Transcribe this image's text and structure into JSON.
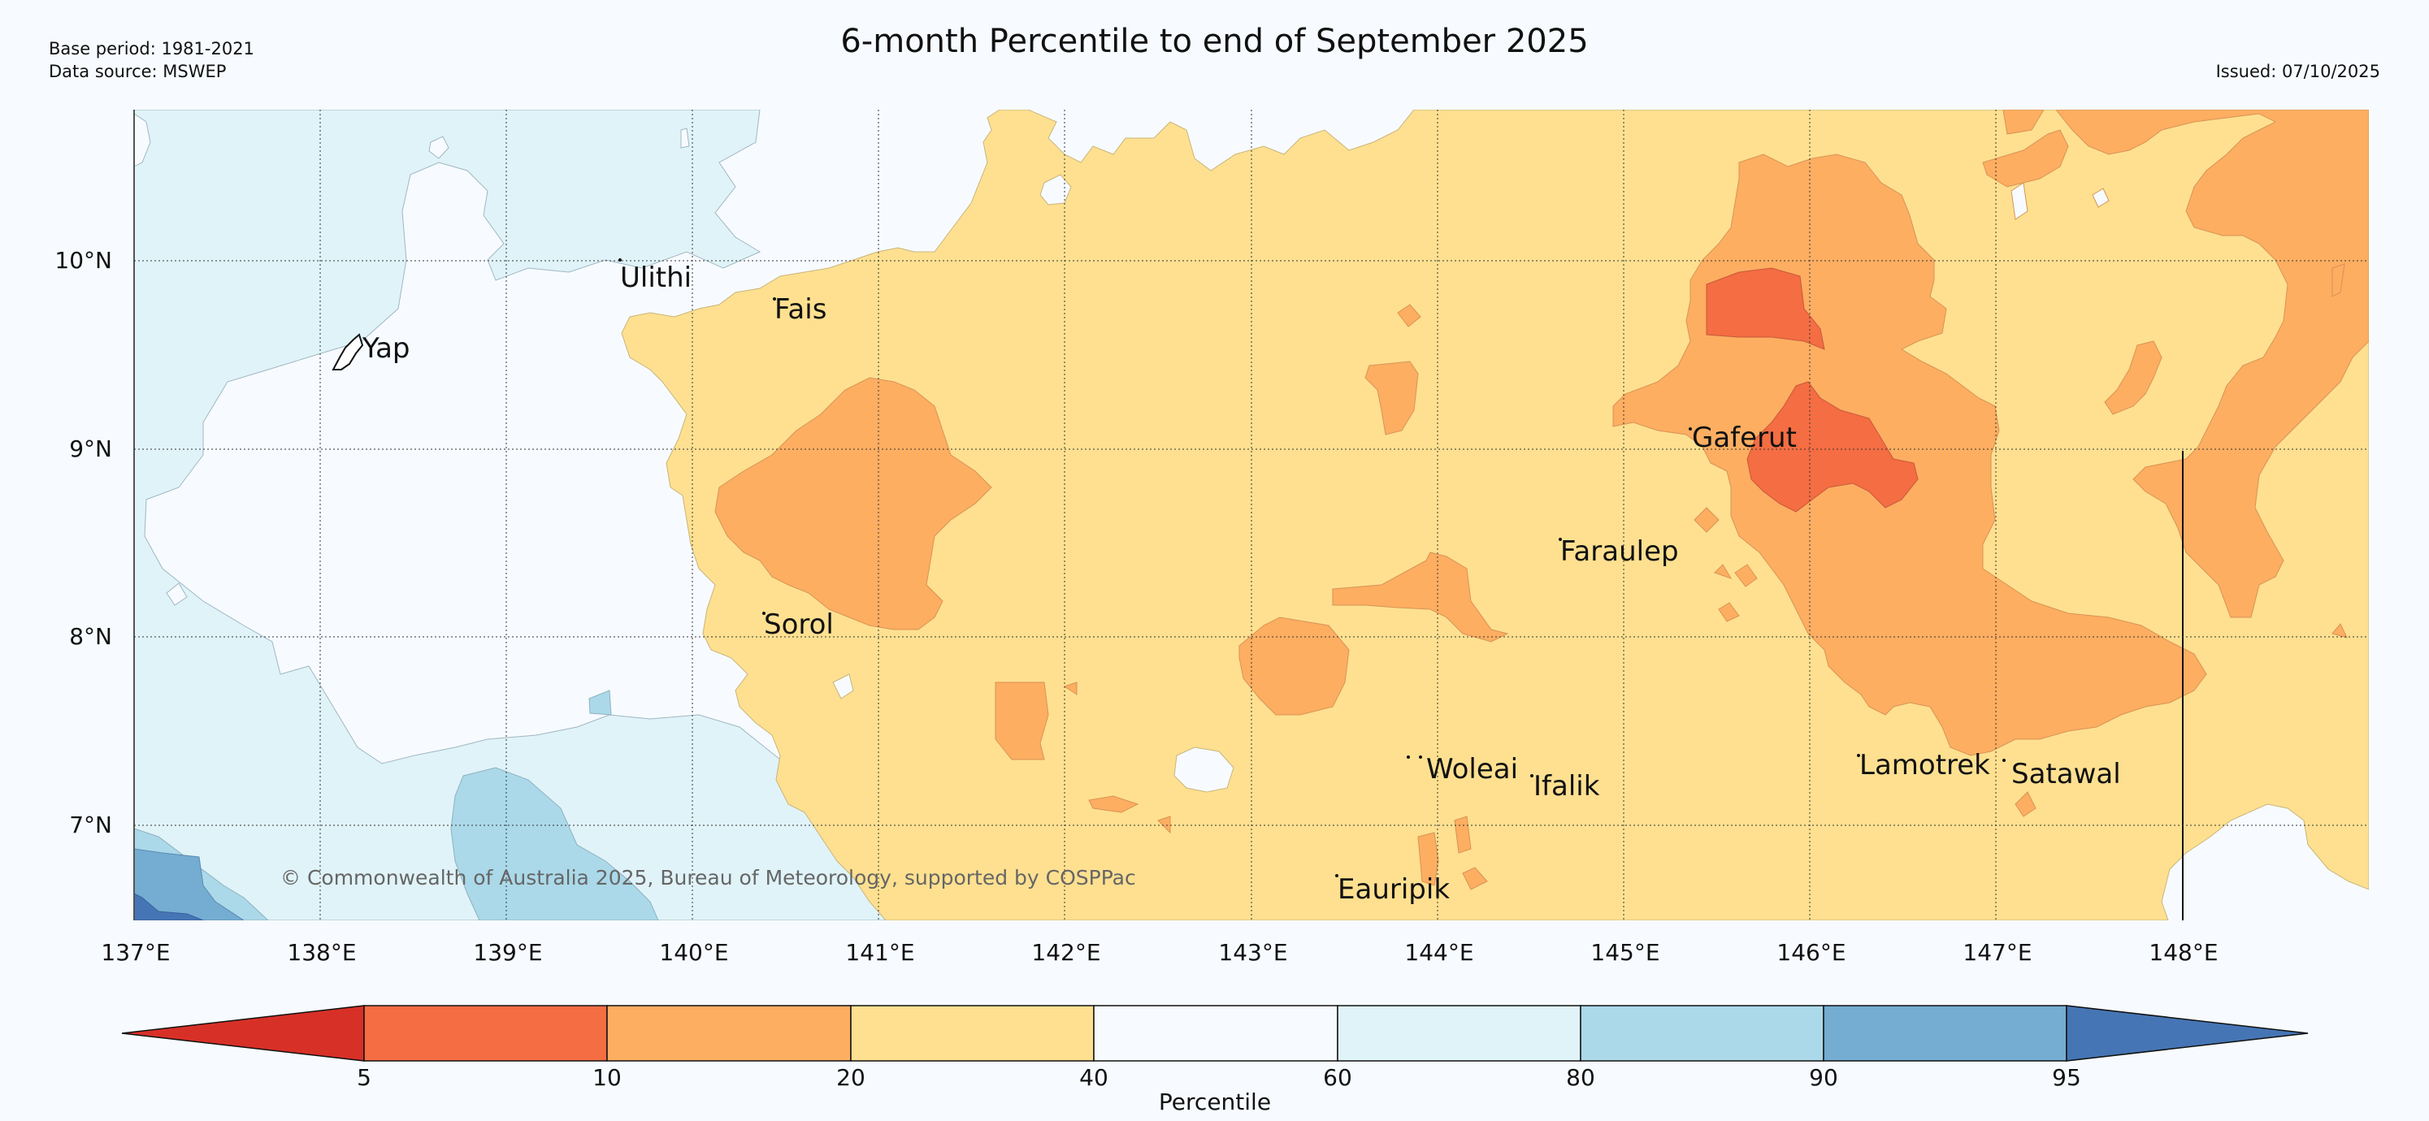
{
  "header": {
    "title": "6-month Percentile to end of September 2025",
    "base_period": "Base period: 1981-2021",
    "data_source": "Data source: MSWEP",
    "issued": "Issued: 07/10/2025"
  },
  "map": {
    "copyright": "© Commonwealth of Australia 2025, Bureau of Meteorology, supported by COSPPac",
    "lat_labels": [
      "10°N",
      "9°N",
      "8°N",
      "7°N"
    ],
    "lon_labels": [
      "137°E",
      "138°E",
      "139°E",
      "140°E",
      "141°E",
      "142°E",
      "143°E",
      "144°E",
      "145°E",
      "146°E",
      "147°E",
      "148°E"
    ],
    "places": [
      {
        "name": "Yap"
      },
      {
        "name": "Ulithi"
      },
      {
        "name": "Fais"
      },
      {
        "name": "Sorol"
      },
      {
        "name": "Gaferut"
      },
      {
        "name": "Faraulep"
      },
      {
        "name": "Woleai"
      },
      {
        "name": "Ifalik"
      },
      {
        "name": "Lamotrek"
      },
      {
        "name": "Satawal"
      },
      {
        "name": "Eauripik"
      }
    ]
  },
  "colorbar": {
    "label": "Percentile",
    "ticks": [
      "5",
      "10",
      "20",
      "40",
      "60",
      "80",
      "90",
      "95"
    ],
    "colors": {
      "below_5": "#d73027",
      "p5_10": "#f46d43",
      "p10_20": "#fdae61",
      "p20_40": "#fee090",
      "p40_60": "#f7fbff",
      "p60_80": "#e0f3f8",
      "p80_90": "#abd9e9",
      "p90_95": "#74add1",
      "above_95": "#4575b4"
    }
  }
}
